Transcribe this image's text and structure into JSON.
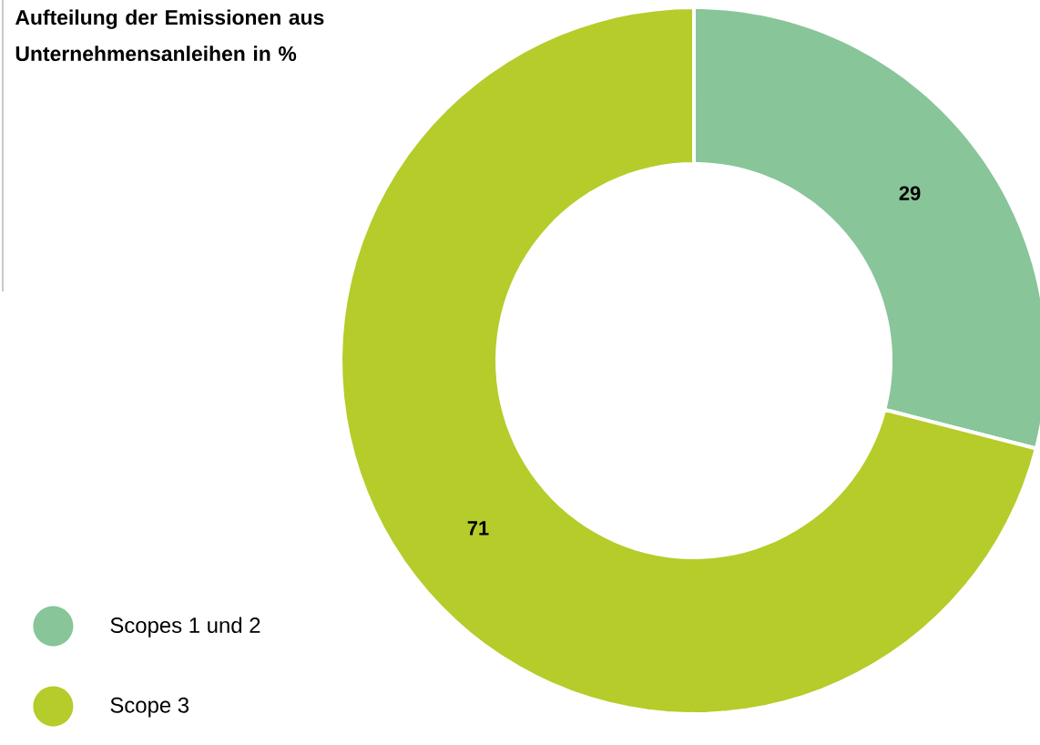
{
  "chart_data": {
    "type": "donut",
    "title": "Aufteilung der Emissionen aus Unternehmensanleihen in %",
    "categories": [
      "Scopes 1 und 2",
      "Scope 3"
    ],
    "values": [
      29,
      71
    ],
    "colors": [
      "#88c599",
      "#b5cc2a"
    ],
    "data_labels": true,
    "legend": "bottom left"
  }
}
